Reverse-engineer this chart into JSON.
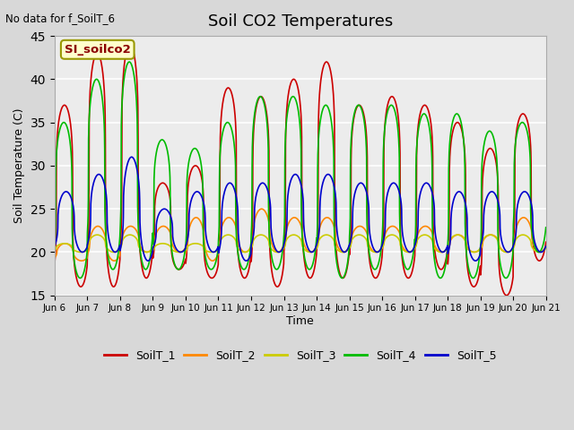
{
  "title": "Soil CO2 Temperatures",
  "xlabel": "Time",
  "ylabel": "Soil Temperature (C)",
  "no_data_label": "No data for f_SoilT_6",
  "site_label": "SI_soilco2",
  "ylim": [
    15,
    45
  ],
  "yticks": [
    15,
    20,
    25,
    30,
    35,
    40,
    45
  ],
  "series_colors": {
    "SoilT_1": "#cc0000",
    "SoilT_2": "#ff8800",
    "SoilT_3": "#cccc00",
    "SoilT_4": "#00bb00",
    "SoilT_5": "#0000cc"
  },
  "bg_color": "#d8d8d8",
  "plot_bg_color": "#ececec",
  "xticklabels": [
    "Jun 6",
    "Jun 7",
    "Jun 8",
    "Jun 9",
    "Jun 10",
    "Jun 11",
    "Jun 12",
    "Jun 13",
    "Jun 14",
    "Jun 15",
    "Jun 16",
    "Jun 17",
    "Jun 18",
    "Jun 19",
    "Jun 20",
    "Jun 21"
  ],
  "n_days": 15,
  "points_per_day": 144
}
